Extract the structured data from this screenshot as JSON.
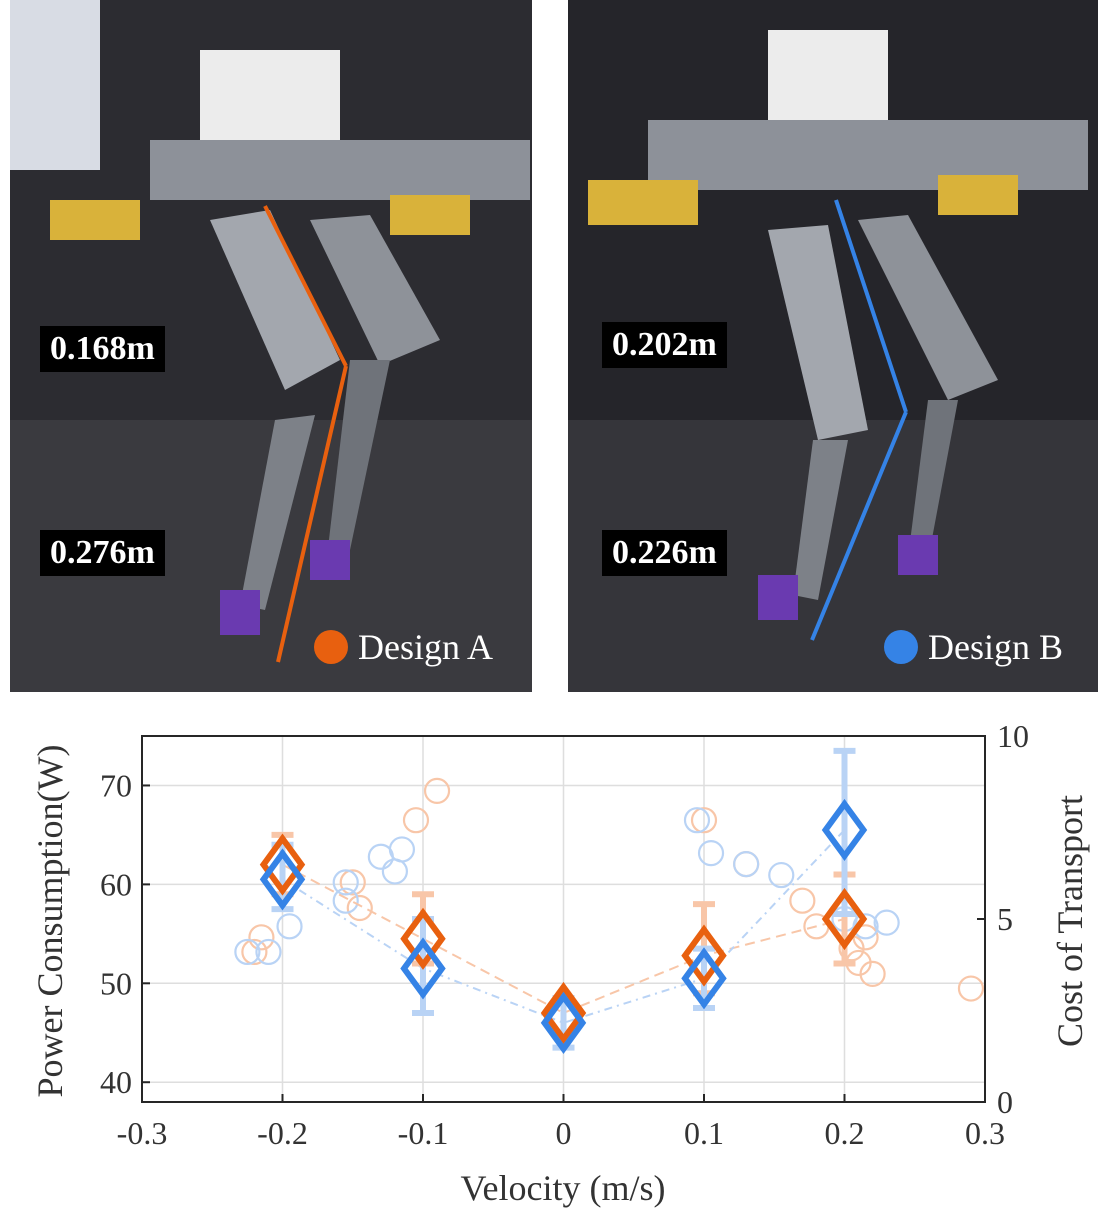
{
  "panels": {
    "design_a": {
      "label": "Design A",
      "upper": "0.168m",
      "lower": "0.276m",
      "color": "#e8600f"
    },
    "design_b": {
      "label": "Design B",
      "upper": "0.202m",
      "lower": "0.226m",
      "color": "#3583e6"
    }
  },
  "chart_data": {
    "type": "scatter",
    "xlabel": "Velocity (m/s)",
    "ylabel": "Power Consumption(W)",
    "y2label": "Cost of Transport",
    "xlim": [
      -0.3,
      0.3
    ],
    "ylim": [
      38,
      75
    ],
    "y2lim": [
      0,
      10
    ],
    "xticks": [
      "-0.3",
      "-0.2",
      "-0.1",
      "0",
      "0.1",
      "0.2",
      "0.3"
    ],
    "yticks": [
      "40",
      "50",
      "60",
      "70"
    ],
    "y2ticks": [
      "0",
      "5",
      "10"
    ],
    "grid": true,
    "series": [
      {
        "name": "Design A",
        "color": "#e8600f",
        "light_color": "#f8c6a8",
        "x": [
          -0.2,
          -0.1,
          0,
          0.1,
          0.2
        ],
        "mean_power": [
          62.0,
          54.5,
          47.0,
          52.8,
          56.5
        ],
        "err_low": [
          59.0,
          52.0,
          45.0,
          49.0,
          52.0
        ],
        "err_high": [
          65.0,
          59.0,
          48.5,
          58.0,
          61.0
        ],
        "cot_trials": [
          [
            -0.22,
            4.1
          ],
          [
            -0.215,
            4.5
          ],
          [
            -0.15,
            6.0
          ],
          [
            -0.145,
            5.3
          ],
          [
            -0.105,
            7.7
          ],
          [
            -0.09,
            8.5
          ],
          [
            0.1,
            7.7
          ],
          [
            0.13,
            6.5
          ],
          [
            0.17,
            5.5
          ],
          [
            0.18,
            4.8
          ],
          [
            0.205,
            4.2
          ],
          [
            0.21,
            3.8
          ],
          [
            0.215,
            4.5
          ],
          [
            0.22,
            3.5
          ],
          [
            0.29,
            3.1
          ]
        ]
      },
      {
        "name": "Design B",
        "color": "#3583e6",
        "light_color": "#b9d3f5",
        "x": [
          -0.2,
          -0.1,
          0,
          0.1,
          0.2
        ],
        "mean_power": [
          60.5,
          51.5,
          46.0,
          50.5,
          65.5
        ],
        "err_low": [
          57.5,
          47.0,
          43.5,
          47.5,
          57.0
        ],
        "err_high": [
          64.0,
          56.5,
          48.5,
          53.5,
          73.5
        ],
        "cot_trials": [
          [
            -0.225,
            4.1
          ],
          [
            -0.21,
            4.1
          ],
          [
            -0.195,
            4.8
          ],
          [
            -0.155,
            6.0
          ],
          [
            -0.155,
            5.5
          ],
          [
            -0.13,
            6.7
          ],
          [
            -0.12,
            6.3
          ],
          [
            -0.115,
            6.9
          ],
          [
            0.095,
            7.7
          ],
          [
            0.105,
            6.8
          ],
          [
            0.13,
            6.5
          ],
          [
            0.155,
            6.2
          ],
          [
            0.2,
            5.0
          ],
          [
            0.215,
            4.8
          ],
          [
            0.23,
            4.9
          ]
        ]
      }
    ]
  }
}
